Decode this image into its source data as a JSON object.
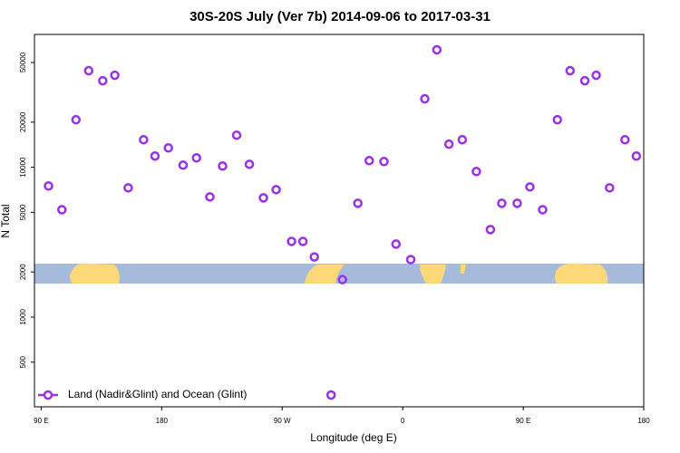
{
  "chart_data": {
    "type": "scatter",
    "title": "30S-20S July (Ver 7b)   2014-09-06 to 2017-03-31",
    "x_label": "Longitude (deg E)",
    "y_label": "N Total",
    "y_scale": "log",
    "xlim": [
      85,
      540
    ],
    "ylim": [
      252,
      77000
    ],
    "xticks": [
      {
        "value": 90,
        "label": "90 E"
      },
      {
        "value": 180,
        "label": "180"
      },
      {
        "value": 270,
        "label": "90 W"
      },
      {
        "value": 360,
        "label": "0"
      },
      {
        "value": 450,
        "label": "90 E"
      },
      {
        "value": 540,
        "label": "180"
      }
    ],
    "yticks": [
      500,
      1000,
      2000,
      5000,
      10000,
      20000,
      50000
    ],
    "legend_position": "bottom-left",
    "series": [
      {
        "name": "Land (Nadir&Glint) and Ocean (Glint)",
        "color": "#9b30e8",
        "x": [
          95.5,
          105.5,
          116,
          125.5,
          136,
          145,
          155,
          166.5,
          175,
          185,
          196,
          206,
          216,
          225.5,
          236,
          245.5,
          256,
          265.5,
          277,
          285.5,
          294,
          315,
          306.5,
          326.5,
          335,
          346,
          355,
          366,
          376.5,
          385.5,
          394.5,
          404.5,
          415,
          425.5,
          434,
          445.5,
          455,
          464.5,
          475.5,
          485,
          496,
          504.5,
          514.5,
          526,
          534.5
        ],
        "values": [
          7500,
          5210,
          20750,
          44100,
          37800,
          41100,
          7290,
          15270,
          11880,
          13460,
          10330,
          11550,
          6340,
          10190,
          16370,
          10470,
          6250,
          7090,
          3200,
          3200,
          2520,
          1780,
          302,
          5750,
          11070,
          10920,
          3070,
          2420,
          28640,
          60800,
          14250,
          15270,
          9370,
          3840,
          5750,
          5750,
          7390,
          5210,
          20750,
          44100,
          37800,
          41100,
          7290,
          15270,
          11880
        ]
      }
    ]
  }
}
